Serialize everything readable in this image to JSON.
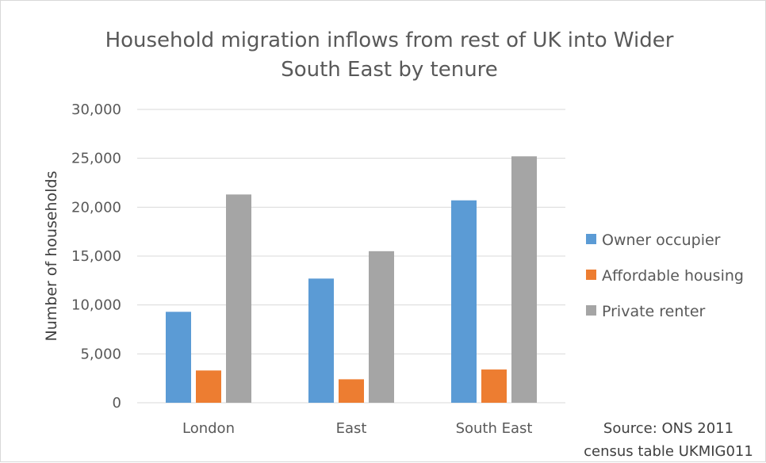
{
  "chart_data": {
    "type": "bar",
    "title_lines": [
      "Household migration inflows from rest of UK into Wider",
      "South East by tenure"
    ],
    "ylabel": "Number of households",
    "xlabel": "",
    "ylim": [
      0,
      30000
    ],
    "yticks": [
      0,
      5000,
      10000,
      15000,
      20000,
      25000,
      30000
    ],
    "ytick_labels": [
      "0",
      "5,000",
      "10,000",
      "15,000",
      "20,000",
      "25,000",
      "30,000"
    ],
    "grid": true,
    "legend_position": "right",
    "categories": [
      "London",
      "East",
      "South East"
    ],
    "series": [
      {
        "name": "Owner occupier",
        "color": "#5b9bd5",
        "values": [
          9300,
          12700,
          20700
        ]
      },
      {
        "name": "Affordable housing",
        "color": "#ed7d31",
        "values": [
          3300,
          2400,
          3400
        ]
      },
      {
        "name": "Private renter",
        "color": "#a5a5a5",
        "values": [
          21300,
          15500,
          25200
        ]
      }
    ],
    "source_lines": [
      "Source: ONS 2011",
      "census table UKMIG011"
    ]
  }
}
